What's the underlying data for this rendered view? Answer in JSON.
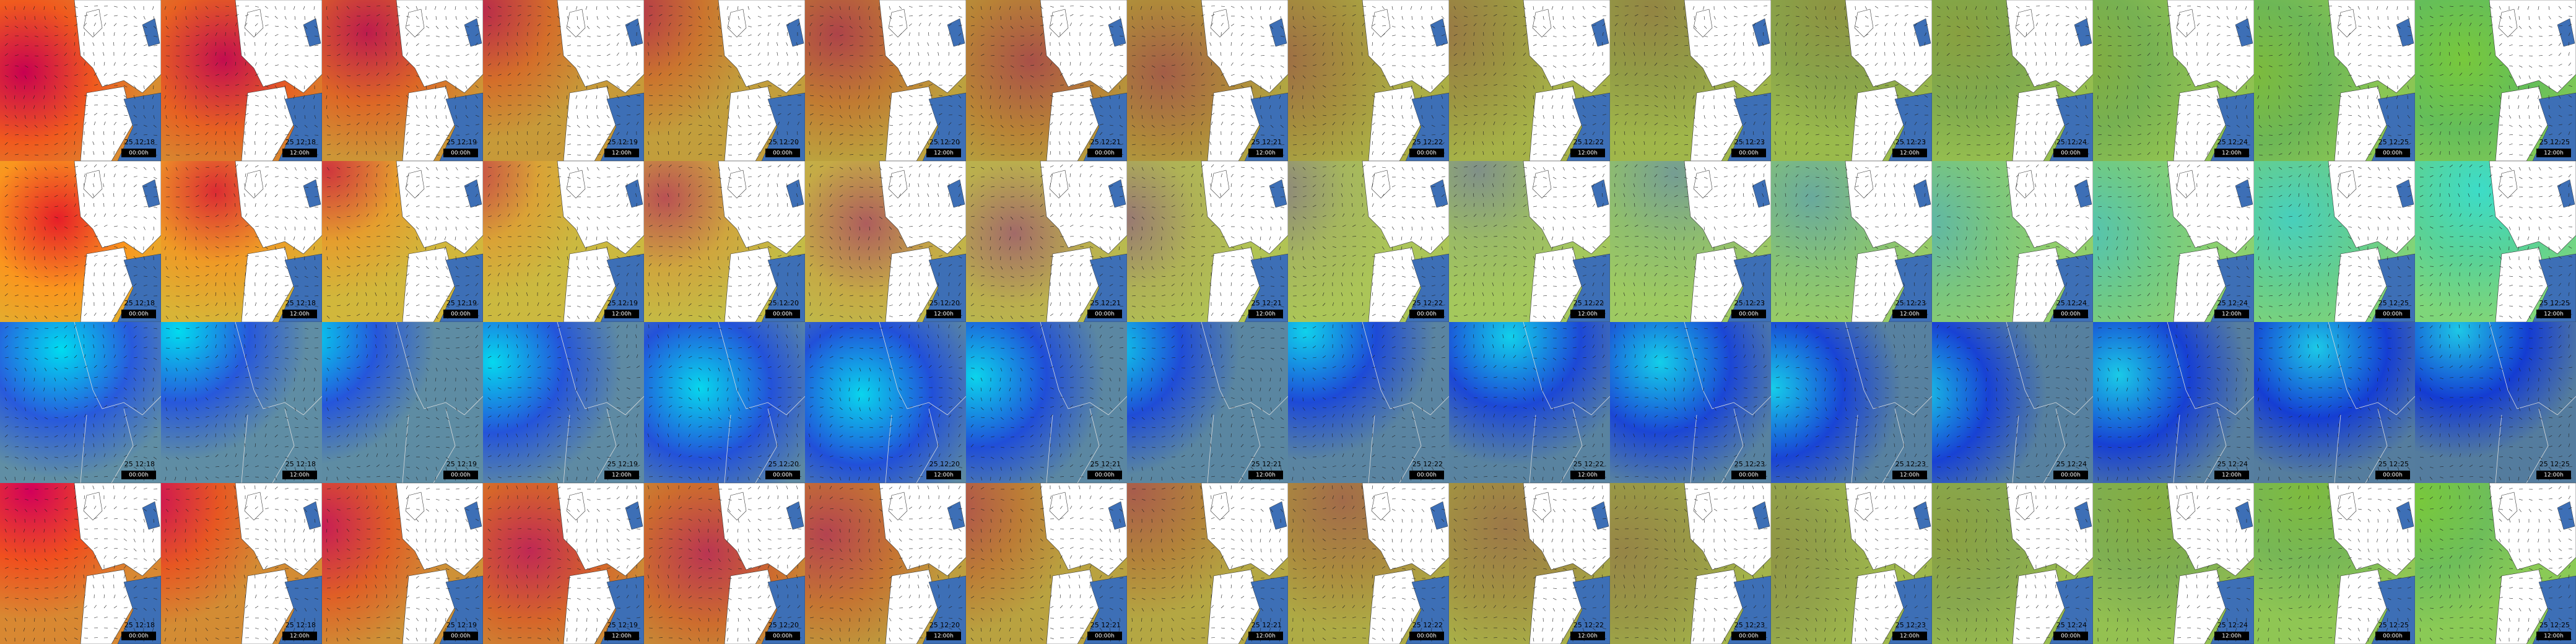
{
  "columns": [
    {
      "date": "25 12:18",
      "time": "00:00h"
    },
    {
      "date": "25 12:18",
      "time": "12:00h"
    },
    {
      "date": "25 12:19",
      "time": "00:00h"
    },
    {
      "date": "25 12:19",
      "time": "12:00h"
    },
    {
      "date": "25 12:20",
      "time": "00:00h"
    },
    {
      "date": "25 12:20",
      "time": "12:00h"
    },
    {
      "date": "25 12:21",
      "time": "00:00h"
    },
    {
      "date": "25 12:21",
      "time": "12:00h"
    },
    {
      "date": "25 12:22",
      "time": "00:00h"
    },
    {
      "date": "25 12:22",
      "time": "12:00h"
    },
    {
      "date": "25 12:23",
      "time": "00:00h"
    },
    {
      "date": "25 12:23",
      "time": "12:00h"
    },
    {
      "date": "25 12:24",
      "time": "00:00h"
    },
    {
      "date": "25 12:24",
      "time": "12:00h"
    },
    {
      "date": "25 12:25",
      "time": "00:00h"
    },
    {
      "date": "25 12:25",
      "time": "12:00h"
    }
  ]
}
